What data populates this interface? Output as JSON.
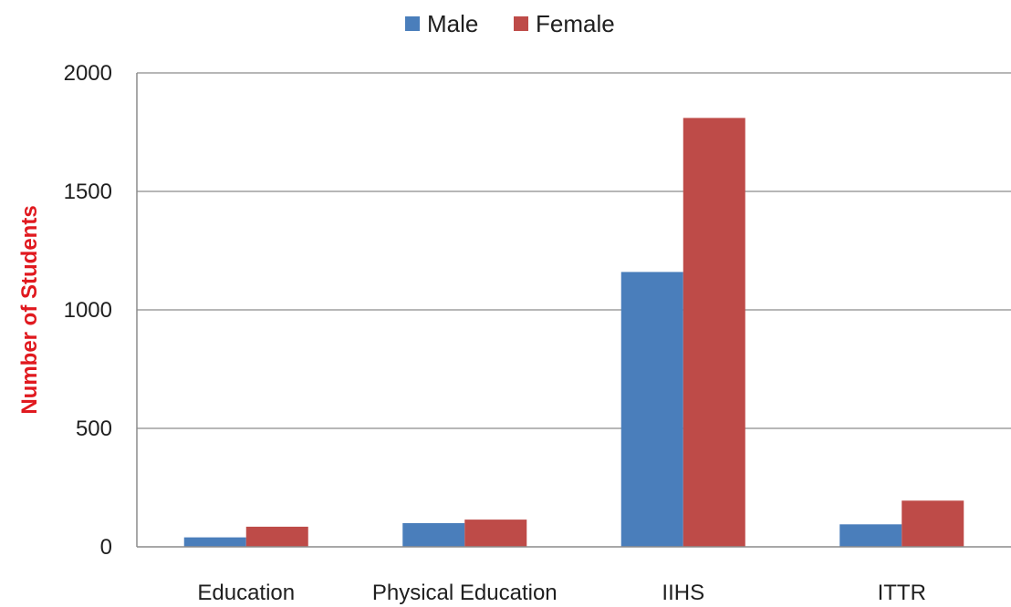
{
  "chart_data": {
    "type": "bar",
    "title": "",
    "xlabel": "",
    "ylabel": "Number of Students",
    "ylabel_color": "#e0191f",
    "categories": [
      "Education",
      "Physical Education",
      "IIHS",
      "ITTR"
    ],
    "series": [
      {
        "name": "Male",
        "color": "#4a7ebb",
        "values": [
          40,
          100,
          1160,
          95
        ]
      },
      {
        "name": "Female",
        "color": "#be4b48",
        "values": [
          85,
          115,
          1810,
          195
        ]
      }
    ],
    "ylim": [
      0,
      2000
    ],
    "yticks": [
      "0",
      "500",
      "1000",
      "1500",
      "2000"
    ],
    "ytick_values": [
      0,
      500,
      1000,
      1500,
      2000
    ],
    "grid": true,
    "legend_position": "top-center"
  }
}
